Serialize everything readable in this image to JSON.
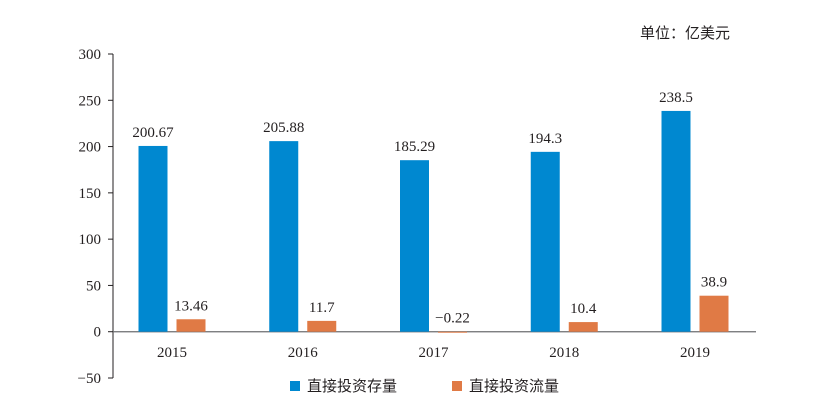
{
  "chart_data": {
    "type": "bar",
    "unit_label": "单位：亿美元",
    "categories": [
      "2015",
      "2016",
      "2017",
      "2018",
      "2019"
    ],
    "series": [
      {
        "name": "直接投资存量",
        "color": "#0088d0",
        "values": [
          200.67,
          205.88,
          185.29,
          194.3,
          238.5
        ],
        "labels": [
          "200.67",
          "205.88",
          "185.29",
          "194.3",
          "238.5"
        ]
      },
      {
        "name": "直接投资流量",
        "color": "#e07a45",
        "values": [
          13.46,
          11.7,
          -0.22,
          10.4,
          38.9
        ],
        "labels": [
          "13.46",
          "11.7",
          "−0.22",
          "10.4",
          "38.9"
        ]
      }
    ],
    "ylim": [
      -50,
      300
    ],
    "yticks": [
      -50,
      0,
      50,
      100,
      150,
      200,
      250,
      300
    ],
    "ytick_labels": [
      "−50",
      "0",
      "50",
      "100",
      "150",
      "200",
      "250",
      "300"
    ],
    "grid": false,
    "legend_position": "bottom"
  }
}
